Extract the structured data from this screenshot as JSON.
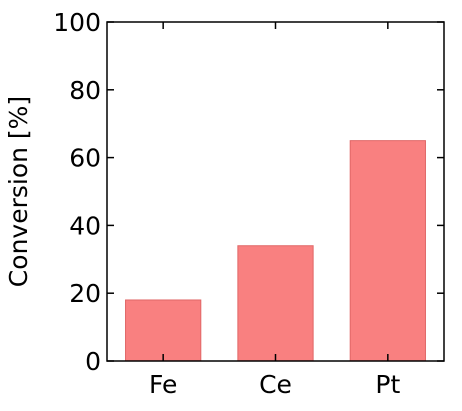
{
  "chart_data": {
    "type": "bar",
    "title": "",
    "xlabel": "",
    "ylabel": "Conversion [%]",
    "categories": [
      "Fe",
      "Ce",
      "Pt"
    ],
    "values": [
      18,
      34,
      65
    ],
    "ylim": [
      0,
      100
    ],
    "yticks": [
      0,
      20,
      40,
      60,
      80,
      100
    ],
    "grid": false,
    "legend": "none",
    "bar_color": "#f98080",
    "bar_edge_color": "#e06666",
    "axis_color": "#000000"
  }
}
